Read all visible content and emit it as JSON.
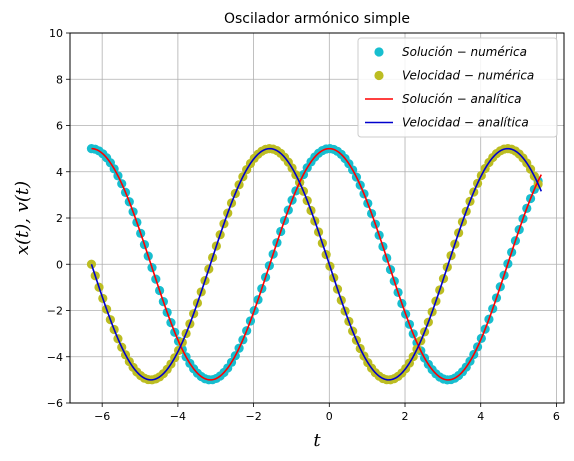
{
  "chart_data": {
    "type": "line",
    "title": "Oscilador armónico simple",
    "xlabel": "t",
    "ylabel": "x(t), v(t)",
    "xlim": [
      -6.85,
      6.2
    ],
    "ylim": [
      -6,
      10
    ],
    "xticks": [
      -6,
      -4,
      -2,
      0,
      2,
      4,
      6
    ],
    "yticks": [
      -6,
      -4,
      -2,
      0,
      2,
      4,
      6,
      8,
      10
    ],
    "xtick_labels": [
      "−6",
      "−4",
      "−2",
      "0",
      "2",
      "4",
      "6"
    ],
    "ytick_labels": [
      "−6",
      "−4",
      "−2",
      "0",
      "2",
      "4",
      "6",
      "8",
      "10"
    ],
    "grid": true,
    "legend_position": "upper-right",
    "series": [
      {
        "name": "Solución − numérica",
        "kind": "scatter",
        "color": "#17becf",
        "x_start": -6.2832,
        "x_end": 5.6,
        "step": 0.1,
        "amplitude": 5,
        "function": "cos"
      },
      {
        "name": "Velocidad − numérica",
        "kind": "scatter",
        "color": "#bcbd22",
        "x_start": -6.2832,
        "x_end": 5.6,
        "step": 0.1,
        "amplitude": 5,
        "function": "-sin"
      },
      {
        "name": "Solución − analítica",
        "kind": "line",
        "color": "#ff0000",
        "x_start": -6.2832,
        "x_end": 5.6,
        "amplitude": 5,
        "function": "cos"
      },
      {
        "name": "Velocidad − analítica",
        "kind": "line",
        "color": "#0000cd",
        "x_start": -6.2832,
        "x_end": 5.6,
        "amplitude": 5,
        "function": "-sin"
      }
    ]
  }
}
